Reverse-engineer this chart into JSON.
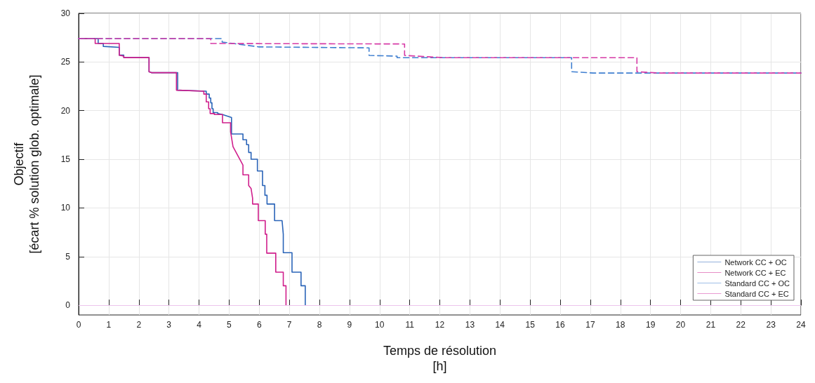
{
  "chart_data": {
    "type": "line",
    "xlabel": "Temps de résolution\n[h]",
    "ylabel": "Objectif\n[écart % solution glob. optimale]",
    "xlim": [
      0,
      24
    ],
    "xticks": [
      0,
      1,
      2,
      3,
      4,
      5,
      6,
      7,
      8,
      9,
      10,
      11,
      12,
      13,
      14,
      15,
      16,
      17,
      18,
      19,
      20,
      21,
      22,
      23,
      24
    ],
    "ylim": [
      -1,
      30
    ],
    "yticks": [
      0,
      5,
      10,
      15,
      20,
      25,
      30
    ],
    "grid": true,
    "legend": "bottom right",
    "marker": "none",
    "ref_lines": [
      {
        "axis": "y",
        "value": 0,
        "color": "#ecc4ec"
      }
    ],
    "series": [
      {
        "name": "Network CC + OC",
        "color": "#2a64b8",
        "line_style": "solid",
        "x": [
          0,
          0.65,
          0.65,
          0.82,
          0.82,
          1.35,
          1.35,
          1.5,
          1.5,
          2.34,
          2.34,
          2.42,
          3.29,
          3.29,
          4.24,
          4.24,
          4.34,
          4.34,
          4.39,
          4.39,
          4.43,
          4.43,
          4.47,
          4.47,
          4.62,
          4.62,
          4.78,
          5.08,
          5.08,
          5.46,
          5.46,
          5.58,
          5.58,
          5.65,
          5.65,
          5.73,
          5.73,
          5.94,
          5.94,
          6.11,
          6.11,
          6.19,
          6.19,
          6.26,
          6.26,
          6.51,
          6.51,
          6.76,
          6.8,
          6.8,
          7.09,
          7.09,
          7.39,
          7.39,
          7.53,
          7.53
        ],
        "values": [
          27.4,
          27.4,
          26.9,
          26.9,
          26.6,
          26.5,
          25.7,
          25.7,
          25.45,
          25.45,
          24.0,
          23.9,
          23.9,
          22.1,
          22.0,
          21.7,
          21.7,
          21.3,
          21.3,
          20.8,
          20.8,
          20.2,
          20.2,
          19.8,
          19.8,
          19.7,
          19.6,
          19.3,
          17.6,
          17.6,
          17.0,
          17.0,
          16.5,
          16.5,
          15.7,
          15.7,
          15.0,
          15.0,
          13.8,
          13.8,
          12.3,
          12.3,
          11.3,
          11.3,
          10.4,
          10.4,
          8.7,
          8.7,
          7.3,
          5.4,
          5.4,
          3.4,
          3.4,
          2.0,
          2.0,
          0
        ]
      },
      {
        "name": "Network CC + EC",
        "color": "#d01f8c",
        "line_style": "solid",
        "x": [
          0,
          0.55,
          0.55,
          1.35,
          1.35,
          1.5,
          1.5,
          2.34,
          2.34,
          2.42,
          3.25,
          3.25,
          4.16,
          4.16,
          4.24,
          4.24,
          4.32,
          4.32,
          4.37,
          4.37,
          4.51,
          4.51,
          4.78,
          4.78,
          5.05,
          5.05,
          5.13,
          5.46,
          5.46,
          5.65,
          5.65,
          5.73,
          5.78,
          5.78,
          5.97,
          5.97,
          6.2,
          6.2,
          6.25,
          6.25,
          6.55,
          6.55,
          6.8,
          6.8,
          6.89,
          6.89
        ],
        "values": [
          27.4,
          27.4,
          26.9,
          26.9,
          25.7,
          25.6,
          25.45,
          25.45,
          24.0,
          23.9,
          23.9,
          22.1,
          22.0,
          21.7,
          21.7,
          20.9,
          20.9,
          20.2,
          20.2,
          19.7,
          19.7,
          19.6,
          19.6,
          18.75,
          18.75,
          17.8,
          16.3,
          14.4,
          13.4,
          13.4,
          12.3,
          12.0,
          11.0,
          10.4,
          10.4,
          8.7,
          8.7,
          7.3,
          7.3,
          5.35,
          5.35,
          3.4,
          3.4,
          2.0,
          2.0,
          0
        ]
      },
      {
        "name": "Standard CC + OC",
        "color": "#3f7fd0",
        "line_style": "dashed",
        "x": [
          0,
          4.77,
          4.77,
          5.99,
          9.65,
          9.65,
          10.58,
          10.58,
          16.38,
          16.38,
          17.1,
          24
        ],
        "values": [
          27.4,
          27.4,
          27.05,
          26.55,
          26.45,
          25.67,
          25.6,
          25.44,
          25.44,
          24.0,
          23.86,
          23.86
        ]
      },
      {
        "name": "Standard CC + EC",
        "color": "#d63aa6",
        "line_style": "dashed",
        "x": [
          0,
          4.39,
          4.39,
          10.83,
          10.83,
          12.15,
          18.55,
          18.55,
          19.3,
          24
        ],
        "values": [
          27.4,
          27.4,
          26.9,
          26.85,
          25.67,
          25.44,
          25.44,
          24.0,
          23.86,
          23.86
        ]
      }
    ]
  }
}
